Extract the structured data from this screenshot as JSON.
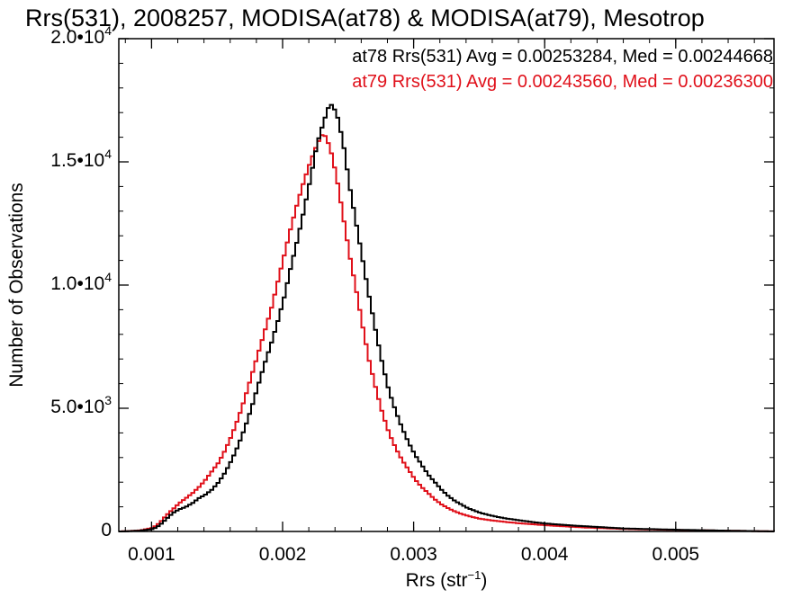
{
  "chart_data": {
    "type": "line",
    "title": "Rrs(531), 2008257, MODISA(at78) & MODISA(at79), Mesotrop",
    "xlabel": {
      "base": "Rrs (str",
      "sup": "−1",
      "tail": ")"
    },
    "ylabel": "Number of Observations",
    "xlim": [
      0.00075,
      0.00575
    ],
    "ylim": [
      0,
      20000
    ],
    "grid": false,
    "legend_position": "top-right",
    "x_ticks": [
      {
        "value": 0.001,
        "label": "0.001"
      },
      {
        "value": 0.002,
        "label": "0.002"
      },
      {
        "value": 0.003,
        "label": "0.003"
      },
      {
        "value": 0.004,
        "label": "0.004"
      },
      {
        "value": 0.005,
        "label": "0.005"
      }
    ],
    "y_ticks": [
      {
        "value": 0,
        "label": "0",
        "sup": ""
      },
      {
        "value": 5000,
        "label": "5.0•10",
        "sup": "3"
      },
      {
        "value": 10000,
        "label": "1.0•10",
        "sup": "4"
      },
      {
        "value": 15000,
        "label": "1.5•10",
        "sup": "4"
      },
      {
        "value": 20000,
        "label": "2.0•10",
        "sup": "4"
      }
    ],
    "series": [
      {
        "name": "at78",
        "legend": "at78 Rrs(531) Avg = 0.00253284, Med = 0.00244668",
        "color": "#000000",
        "x": [
          0.00075,
          0.0009,
          0.001,
          0.00105,
          0.0011,
          0.00115,
          0.0012,
          0.00125,
          0.0013,
          0.00135,
          0.0014,
          0.00145,
          0.0015,
          0.00155,
          0.0016,
          0.00165,
          0.0017,
          0.00175,
          0.0018,
          0.00185,
          0.0019,
          0.00195,
          0.002,
          0.00205,
          0.0021,
          0.00215,
          0.0022,
          0.00225,
          0.0023,
          0.00235,
          0.0024,
          0.00245,
          0.0025,
          0.00255,
          0.0026,
          0.00265,
          0.0027,
          0.00275,
          0.0028,
          0.00285,
          0.0029,
          0.00295,
          0.003,
          0.00305,
          0.0031,
          0.00315,
          0.0032,
          0.00325,
          0.0033,
          0.00335,
          0.0034,
          0.00345,
          0.0035,
          0.0036,
          0.0037,
          0.0038,
          0.0039,
          0.004,
          0.0041,
          0.0042,
          0.0043,
          0.0044,
          0.0045,
          0.0046,
          0.0048,
          0.005,
          0.0052,
          0.0054,
          0.0056,
          0.00575
        ],
        "y": [
          0,
          30,
          100,
          250,
          500,
          750,
          900,
          1000,
          1150,
          1350,
          1500,
          1700,
          2000,
          2400,
          2900,
          3500,
          4200,
          5000,
          5900,
          6800,
          7600,
          8500,
          9500,
          10700,
          11800,
          13000,
          14300,
          15700,
          16600,
          17400,
          17000,
          15800,
          14000,
          12500,
          11000,
          9500,
          8100,
          6800,
          5700,
          4900,
          4200,
          3600,
          3100,
          2700,
          2300,
          2000,
          1700,
          1450,
          1250,
          1100,
          950,
          850,
          750,
          620,
          520,
          450,
          380,
          320,
          280,
          240,
          210,
          180,
          150,
          120,
          95,
          70,
          50,
          30,
          15,
          0
        ]
      },
      {
        "name": "at79",
        "legend": "at79 Rrs(531) Avg = 0.00243560, Med = 0.00236300",
        "color": "#e0101a",
        "x": [
          0.00075,
          0.0009,
          0.001,
          0.00105,
          0.0011,
          0.00115,
          0.0012,
          0.00125,
          0.0013,
          0.00135,
          0.0014,
          0.00145,
          0.0015,
          0.00155,
          0.0016,
          0.00165,
          0.0017,
          0.00175,
          0.0018,
          0.00185,
          0.0019,
          0.00195,
          0.002,
          0.00205,
          0.0021,
          0.00215,
          0.0022,
          0.00225,
          0.0023,
          0.00235,
          0.0024,
          0.00245,
          0.0025,
          0.00255,
          0.0026,
          0.00265,
          0.0027,
          0.00275,
          0.0028,
          0.00285,
          0.0029,
          0.00295,
          0.003,
          0.00305,
          0.0031,
          0.00315,
          0.0032,
          0.00325,
          0.0033,
          0.00335,
          0.0034,
          0.00345,
          0.0035,
          0.0036,
          0.0037,
          0.0038,
          0.0039,
          0.004,
          0.0041,
          0.0042,
          0.0043,
          0.0044,
          0.0045,
          0.0046,
          0.0048,
          0.005,
          0.0052,
          0.0054,
          0.0056,
          0.00575
        ],
        "y": [
          0,
          40,
          150,
          350,
          650,
          900,
          1150,
          1350,
          1550,
          1800,
          2100,
          2450,
          2800,
          3300,
          3900,
          4600,
          5400,
          6300,
          7200,
          8100,
          9000,
          10100,
          11200,
          12300,
          13300,
          14200,
          15000,
          15700,
          16200,
          15600,
          14400,
          12800,
          11200,
          9800,
          8300,
          6900,
          5800,
          4800,
          4000,
          3400,
          2900,
          2500,
          2100,
          1800,
          1550,
          1300,
          1100,
          950,
          820,
          720,
          640,
          570,
          510,
          440,
          380,
          330,
          290,
          250,
          220,
          190,
          160,
          140,
          120,
          100,
          80,
          60,
          45,
          30,
          15,
          0
        ]
      }
    ]
  }
}
